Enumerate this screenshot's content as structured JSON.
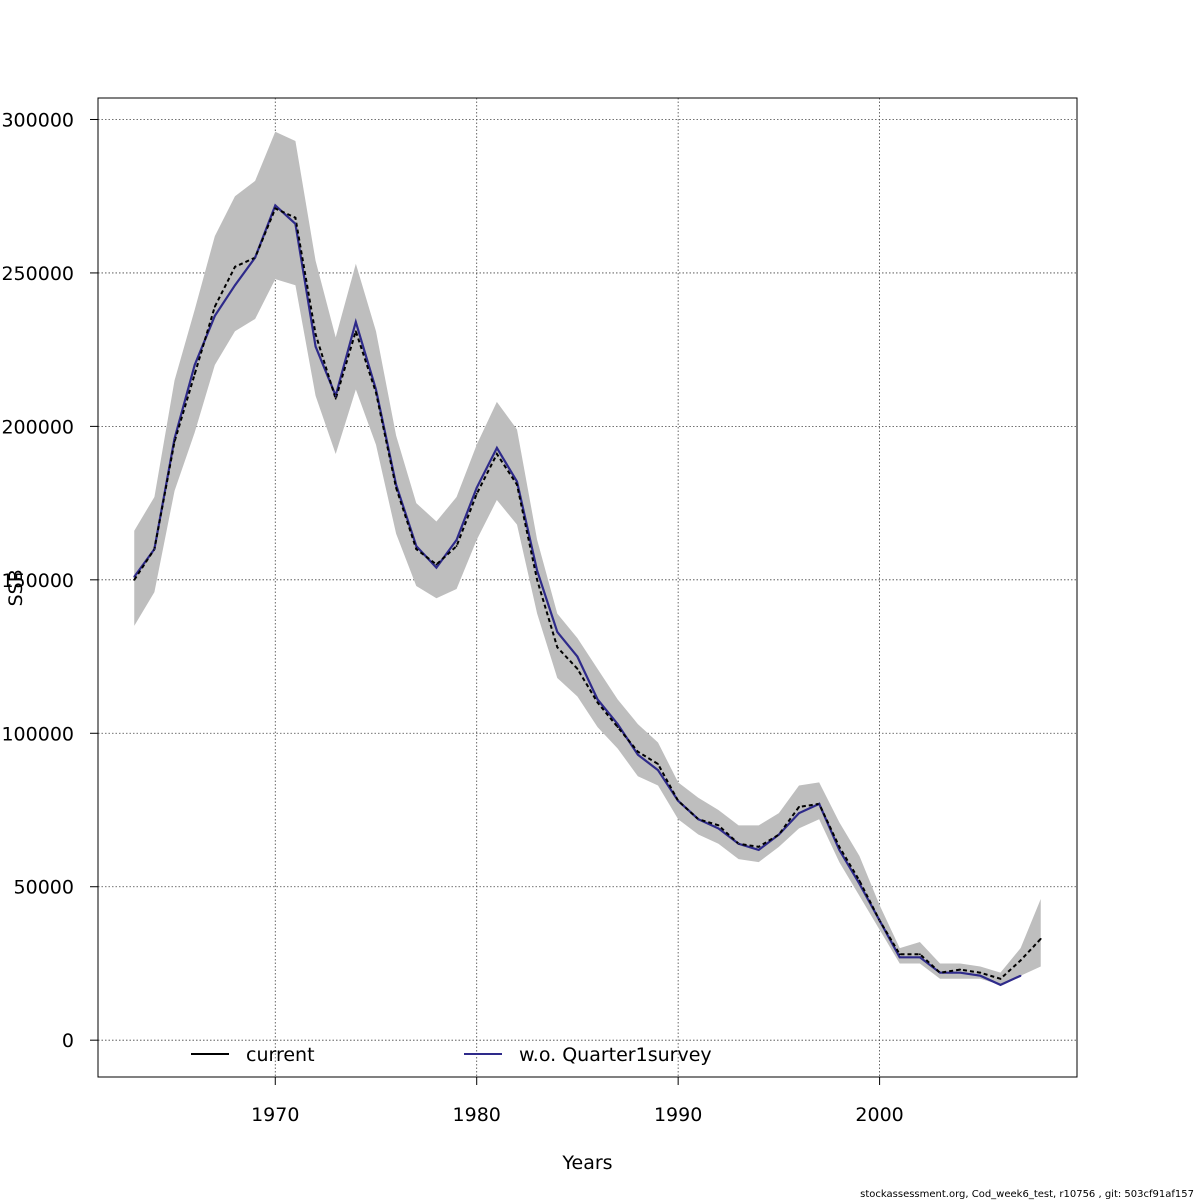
{
  "chart_data": {
    "type": "line",
    "xlabel": "Years",
    "ylabel": "SSB",
    "xlim": [
      1961.2,
      2009.8
    ],
    "ylim": [
      -12000,
      307000
    ],
    "x_ticks": [
      1970,
      1980,
      1990,
      2000
    ],
    "y_ticks": [
      0,
      50000,
      100000,
      150000,
      200000,
      250000,
      300000
    ],
    "grid": true,
    "legend_position": "bottom",
    "colors": {
      "band": "#bebebe",
      "current": "#000000",
      "alt": "#2e2a8a"
    },
    "series": [
      {
        "name": "current",
        "style": "dashed",
        "x": [
          1963,
          1964,
          1965,
          1966,
          1967,
          1968,
          1969,
          1970,
          1971,
          1972,
          1973,
          1974,
          1975,
          1976,
          1977,
          1978,
          1979,
          1980,
          1981,
          1982,
          1983,
          1984,
          1985,
          1986,
          1987,
          1988,
          1989,
          1990,
          1991,
          1992,
          1993,
          1994,
          1995,
          1996,
          1997,
          1998,
          1999,
          2000,
          2001,
          2002,
          2003,
          2004,
          2005,
          2006,
          2007,
          2008
        ],
        "values": [
          150000,
          160000,
          195000,
          217000,
          239000,
          252000,
          255000,
          271000,
          268000,
          230000,
          209000,
          231000,
          211000,
          180000,
          160000,
          155000,
          161000,
          178000,
          191000,
          181000,
          150000,
          128000,
          121000,
          110000,
          102000,
          94000,
          90000,
          78000,
          72000,
          70000,
          64000,
          63000,
          67000,
          76000,
          77000,
          63000,
          52000,
          39000,
          28000,
          28000,
          22000,
          23000,
          22000,
          20000,
          26000,
          33000
        ],
        "ci_low": [
          135000,
          146000,
          179000,
          198000,
          220000,
          231000,
          235000,
          248000,
          246000,
          210000,
          191000,
          212000,
          194000,
          165000,
          148000,
          144000,
          147000,
          163000,
          176000,
          168000,
          139000,
          118000,
          112000,
          102000,
          95000,
          86000,
          83000,
          72000,
          67000,
          64000,
          59000,
          58000,
          63000,
          69000,
          72000,
          58000,
          47000,
          36000,
          25000,
          25000,
          20000,
          20000,
          20000,
          18000,
          21000,
          24000
        ],
        "ci_high": [
          166000,
          177000,
          215000,
          238000,
          262000,
          275000,
          280000,
          296000,
          293000,
          254000,
          229000,
          253000,
          231000,
          197000,
          175000,
          169000,
          177000,
          194000,
          208000,
          199000,
          163000,
          139000,
          131000,
          121000,
          111000,
          103000,
          97000,
          84000,
          79000,
          75000,
          70000,
          70000,
          74000,
          83000,
          84000,
          71000,
          60000,
          44000,
          30000,
          32000,
          25000,
          25000,
          24000,
          22000,
          30000,
          46000
        ]
      },
      {
        "name": "w.o. Quarter1survey",
        "style": "solid",
        "x": [
          1963,
          1964,
          1965,
          1966,
          1967,
          1968,
          1969,
          1970,
          1971,
          1972,
          1973,
          1974,
          1975,
          1976,
          1977,
          1978,
          1979,
          1980,
          1981,
          1982,
          1983,
          1984,
          1985,
          1986,
          1987,
          1988,
          1989,
          1990,
          1991,
          1992,
          1993,
          1994,
          1995,
          1996,
          1997,
          1998,
          1999,
          2000,
          2001,
          2002,
          2003,
          2004,
          2005,
          2006,
          2007
        ],
        "values": [
          151000,
          160000,
          196000,
          220000,
          236000,
          246000,
          255000,
          272000,
          266000,
          226000,
          210000,
          234000,
          212000,
          181000,
          161000,
          154000,
          163000,
          180000,
          193000,
          182000,
          153000,
          133000,
          125000,
          111000,
          103000,
          93000,
          88000,
          78000,
          72000,
          69000,
          64000,
          62000,
          67000,
          74000,
          77000,
          62000,
          51000,
          39000,
          27000,
          27000,
          22000,
          22000,
          21000,
          18000,
          21000
        ]
      }
    ]
  },
  "footer": "stockassessment.org, Cod_week6_test, r10756 , git: 503cf91af157"
}
